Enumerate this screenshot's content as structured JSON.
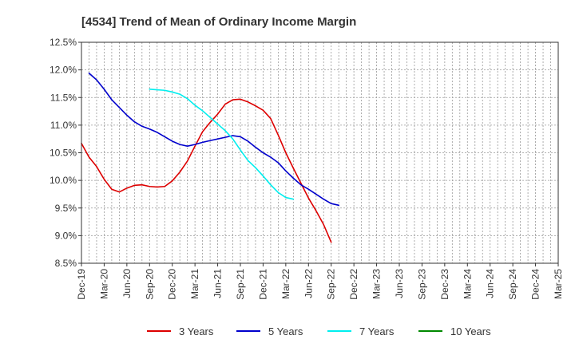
{
  "chart_data": {
    "type": "line",
    "title": "[4534]  Trend of Mean of Ordinary Income Margin",
    "xlabel": "",
    "ylabel": "",
    "x_ticks": [
      "Dec-19",
      "Mar-20",
      "Jun-20",
      "Sep-20",
      "Dec-20",
      "Mar-21",
      "Jun-21",
      "Sep-21",
      "Dec-21",
      "Mar-22",
      "Jun-22",
      "Sep-22",
      "Dec-22",
      "Mar-23",
      "Jun-23",
      "Sep-23",
      "Dec-23",
      "Mar-24",
      "Jun-24",
      "Sep-24",
      "Dec-24",
      "Mar-25"
    ],
    "y_ticks": [
      "8.5%",
      "9.0%",
      "9.5%",
      "10.0%",
      "10.5%",
      "11.0%",
      "11.5%",
      "12.0%",
      "12.5%"
    ],
    "ylim": [
      8.5,
      12.5
    ],
    "grid": true,
    "legend_position": "bottom",
    "series": [
      {
        "name": "3 Years",
        "color": "#dd0000",
        "start_index": 0,
        "values": [
          10.67,
          10.42,
          10.25,
          10.02,
          9.84,
          9.79,
          9.86,
          9.91,
          9.92,
          9.89,
          9.88,
          9.89,
          9.99,
          10.15,
          10.35,
          10.62,
          10.88,
          11.05,
          11.2,
          11.38,
          11.46,
          11.47,
          11.42,
          11.35,
          11.27,
          11.12,
          10.82,
          10.5,
          10.22,
          9.95,
          9.68,
          9.45,
          9.2,
          8.88
        ]
      },
      {
        "name": "5 Years",
        "color": "#0000cc",
        "start_index": 1,
        "values": [
          11.94,
          11.82,
          11.65,
          11.46,
          11.32,
          11.18,
          11.06,
          10.98,
          10.93,
          10.87,
          10.79,
          10.71,
          10.65,
          10.62,
          10.65,
          10.69,
          10.72,
          10.75,
          10.78,
          10.81,
          10.79,
          10.71,
          10.6,
          10.5,
          10.42,
          10.32,
          10.17,
          10.04,
          9.92,
          9.84,
          9.75,
          9.66,
          9.58,
          9.55
        ]
      },
      {
        "name": "7 Years",
        "color": "#00eeee",
        "start_index": 9,
        "values": [
          11.65,
          11.64,
          11.63,
          11.6,
          11.56,
          11.48,
          11.36,
          11.26,
          11.14,
          11.02,
          10.9,
          10.75,
          10.55,
          10.36,
          10.23,
          10.08,
          9.92,
          9.78,
          9.69,
          9.66
        ]
      },
      {
        "name": "10 Years",
        "color": "#008800",
        "start_index": 0,
        "values": []
      }
    ]
  }
}
